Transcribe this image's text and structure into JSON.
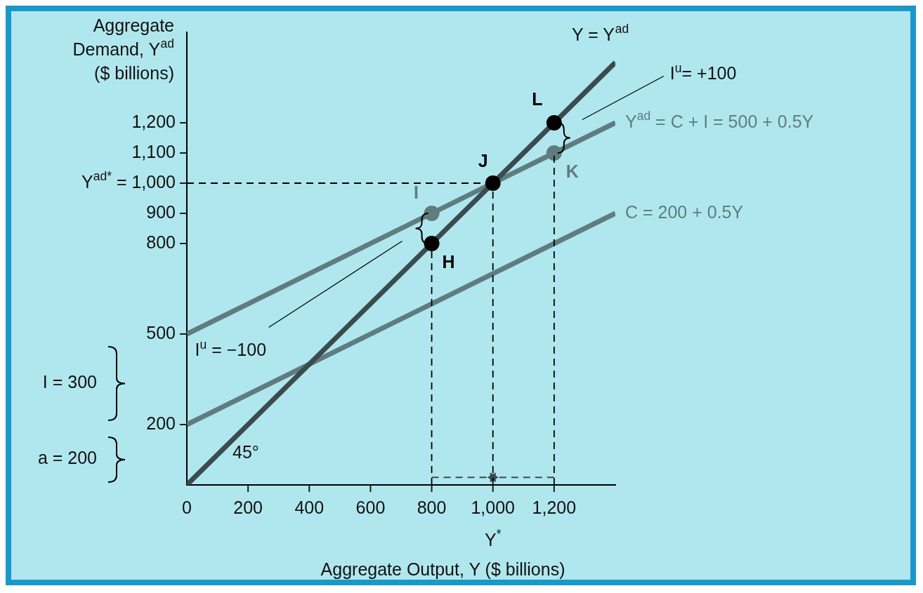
{
  "chart_data": {
    "type": "line",
    "xlabel": "Aggregate Output, Y ($ billions)",
    "ylabel": "Aggregate\nDemand, Y$^{ad}$\n($ billions)",
    "xlim": [
      0,
      1400
    ],
    "ylim": [
      0,
      1500
    ],
    "xticks": [
      0,
      200,
      400,
      600,
      800,
      {
        "value": 1000,
        "label": "1,000"
      },
      {
        "value": 1200,
        "label": "1,200"
      }
    ],
    "yticks": [
      200,
      500,
      800,
      900,
      {
        "value": 1000,
        "label": "Y$^{ad*}$ = 1,000"
      },
      {
        "value": 1100,
        "label": "1,100"
      },
      {
        "value": 1200,
        "label": "1,200"
      }
    ],
    "grid": false,
    "legend": false,
    "line_style": "solid",
    "marker": "none",
    "series": [
      {
        "name": "Y = Y$^{ad}$",
        "color": "#3b4b4f",
        "x": [
          0,
          1400
        ],
        "values": [
          0,
          1400
        ]
      },
      {
        "name": "Y$^{ad}$ = C + I = 500 + 0.5Y",
        "color": "#5f7d7f",
        "x": [
          0,
          1400
        ],
        "values": [
          500,
          1200
        ]
      },
      {
        "name": "C = 200 + 0.5Y",
        "color": "#5f7d7f",
        "x": [
          0,
          1400
        ],
        "values": [
          200,
          900
        ]
      },
      {
        "color": "#000000",
        "x": [
          0,
          1000
        ],
        "values": [
          1000,
          1000
        ],
        "line_style": "dashed"
      },
      {
        "color": "#000000",
        "x": [
          800,
          800
        ],
        "values": [
          0,
          800
        ],
        "line_style": "dashed"
      },
      {
        "color": "#000000",
        "x": [
          1000,
          1000
        ],
        "values": [
          0,
          1000
        ],
        "line_style": "dashed"
      },
      {
        "color": "#000000",
        "x": [
          1200,
          1200
        ],
        "values": [
          0,
          1100
        ],
        "line_style": "dashed"
      },
      {
        "color": "#3b4b4f",
        "x": [
          800,
          1000
        ],
        "values": [
          25,
          25
        ],
        "line_style": "dashed",
        "marker": "triangle"
      },
      {
        "color": "#3b4b4f",
        "x": [
          1200,
          1000
        ],
        "values": [
          25,
          25
        ],
        "line_style": "dashed",
        "marker": "triangle"
      },
      {
        "type": "scatter",
        "marker": "circle",
        "x": [
          800,
          800,
          1000,
          1200,
          1200
        ],
        "values": [
          800,
          900,
          1000,
          1100,
          1200
        ],
        "colors": [
          "#000000",
          "#5f7d7f",
          "#000000",
          "#5f7d7f",
          "#000000"
        ]
      }
    ],
    "annotations": [
      {
        "text": "H",
        "x": 800,
        "y": 800
      },
      {
        "text": "I",
        "x": 800,
        "y": 900
      },
      {
        "text": "J",
        "x": 1000,
        "y": 1000
      },
      {
        "text": "K",
        "x": 1200,
        "y": 1100
      },
      {
        "text": "L",
        "x": 1200,
        "y": 1200
      },
      "I$^{u}$= +100",
      "I$^{u}$ = −100",
      "45°",
      "I = 300",
      "a = 200",
      "Y$^{*}$"
    ]
  }
}
